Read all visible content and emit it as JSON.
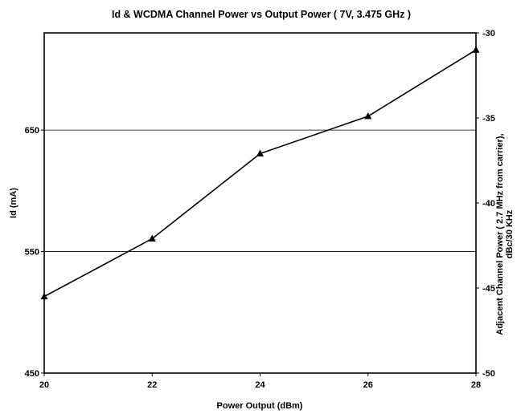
{
  "chart_data": {
    "type": "line",
    "title": "Id & WCDMA Channel Power vs Output Power ( 7V, 3.475 GHz )",
    "xlabel": "Power Output (dBm)",
    "ylabel": "Id (mA)",
    "y2label_line1": "Adjacent Channel Power ( 2.7 MHz from carrier),",
    "y2label_line2": "dBc/30 KHz",
    "xlim": [
      20,
      28
    ],
    "ylim": [
      450,
      730
    ],
    "y2lim": [
      -50,
      -30
    ],
    "x_ticks": [
      "20",
      "22",
      "24",
      "26",
      "28"
    ],
    "y_ticks": [
      "450",
      "550",
      "650"
    ],
    "y2_ticks": [
      "-30",
      "-35",
      "-40",
      "-45",
      "-50"
    ],
    "grid": "horizontal",
    "series": [
      {
        "axis": "right",
        "color": "#000000",
        "marker": "triangle",
        "x": [
          20,
          22,
          24,
          26,
          28
        ],
        "values": [
          -45.5,
          -42.1,
          -37.1,
          -34.9,
          -31.0
        ]
      }
    ]
  }
}
